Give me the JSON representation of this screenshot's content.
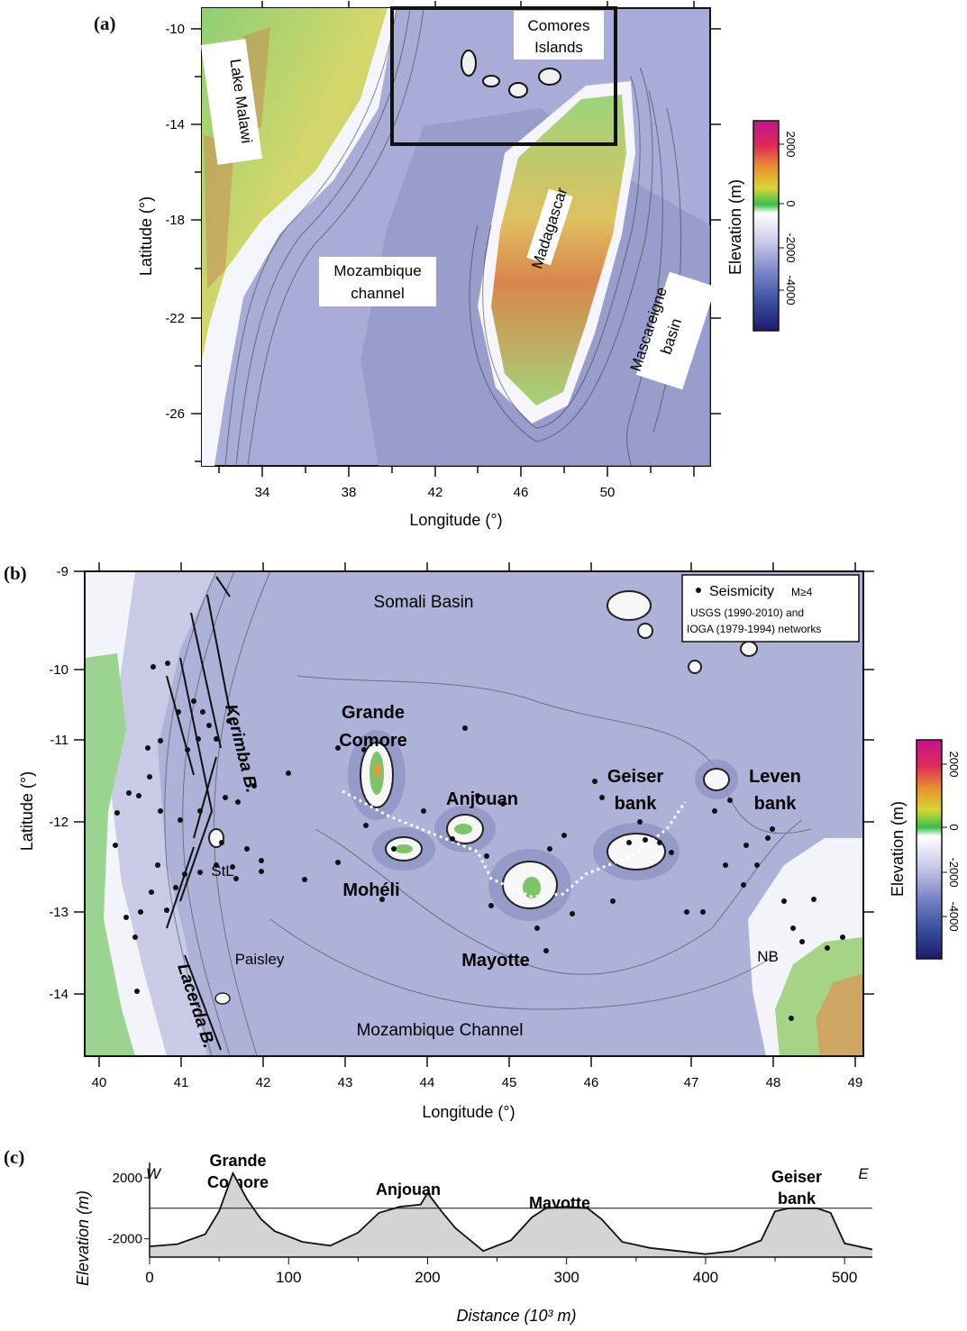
{
  "panel_a": {
    "label": "(a)",
    "xlabel": "Longitude (°)",
    "ylabel": "Latitude (°)",
    "xticks": [
      "34",
      "38",
      "42",
      "46",
      "50"
    ],
    "yticks": [
      "-10",
      "-14",
      "-18",
      "-22",
      "-26"
    ],
    "annotations": {
      "lake_malawi": "Lake Malawi",
      "comores_1": "Comores",
      "comores_2": "Islands",
      "mozambique_1": "Mozambique",
      "mozambique_2": "channel",
      "madagascar": "Madagascar",
      "mascareigne_1": "Mascareigne",
      "mascareigne_2": "basin"
    },
    "colorbar": {
      "label": "Elevation (m)",
      "ticks": [
        "2000",
        "0",
        "-2000",
        "-4000"
      ]
    }
  },
  "panel_b": {
    "label": "(b)",
    "xlabel": "Longitude (°)",
    "ylabel": "Latitude (°)",
    "xticks": [
      "40",
      "41",
      "42",
      "43",
      "44",
      "45",
      "46",
      "47",
      "48",
      "49"
    ],
    "yticks": [
      "-9",
      "-10",
      "-11",
      "-12",
      "-13",
      "-14"
    ],
    "legend": {
      "seismicity": "Seismicity",
      "magnitude": "M≥4",
      "networks_1": "USGS (1990-2010) and",
      "networks_2": "IOGA (1979-1994) networks"
    },
    "annotations": {
      "somali_basin": "Somali Basin",
      "grande_comore_1": "Grande",
      "grande_comore_2": "Comore",
      "anjouan": "Anjouan",
      "geiser_1": "Geiser",
      "geiser_2": "bank",
      "leven_1": "Leven",
      "leven_2": "bank",
      "moheli": "Mohéli",
      "mayotte": "Mayotte",
      "kerimba": "Kerimba B.",
      "lacerda": "Lacerda B.",
      "stl": "StL",
      "paisley": "Paisley",
      "nb": "NB",
      "mozambique_channel": "Mozambique Channel"
    },
    "colorbar": {
      "label": "Elevation (m)",
      "ticks": [
        "2000",
        "0",
        "-2000",
        "-4000"
      ]
    }
  },
  "panel_c": {
    "label": "(c)",
    "west": "W",
    "east": "E",
    "peaks": {
      "grande_comore_1": "Grande",
      "grande_comore_2": "Comore",
      "anjouan": "Anjouan",
      "mayotte": "Mayotte",
      "geiser_1": "Geiser",
      "geiser_2": "bank"
    }
  },
  "chart_data": {
    "type": "area",
    "xlabel": "Distance (10³ m)",
    "ylabel": "Elevation (m)",
    "xticks": [
      "0",
      "100",
      "200",
      "300",
      "400",
      "500"
    ],
    "yticks": [
      "2000",
      "-2000"
    ],
    "xlim": [
      0,
      520
    ],
    "ylim": [
      -3200,
      3000
    ],
    "reference_line_y": 0,
    "x": [
      0,
      20,
      40,
      50,
      60,
      70,
      80,
      90,
      110,
      130,
      150,
      165,
      180,
      195,
      200,
      210,
      220,
      240,
      260,
      275,
      285,
      300,
      315,
      325,
      340,
      360,
      380,
      400,
      420,
      440,
      450,
      460,
      480,
      490,
      500,
      520
    ],
    "y": [
      -2500,
      -2350,
      -1700,
      -200,
      2300,
      600,
      -700,
      -1500,
      -2200,
      -2450,
      -1600,
      -300,
      100,
      250,
      1000,
      -200,
      -1300,
      -2800,
      -2100,
      -600,
      0,
      100,
      0,
      -700,
      -2200,
      -2600,
      -2800,
      -3000,
      -2800,
      -2100,
      -200,
      0,
      0,
      -300,
      -2300,
      -2700
    ]
  }
}
